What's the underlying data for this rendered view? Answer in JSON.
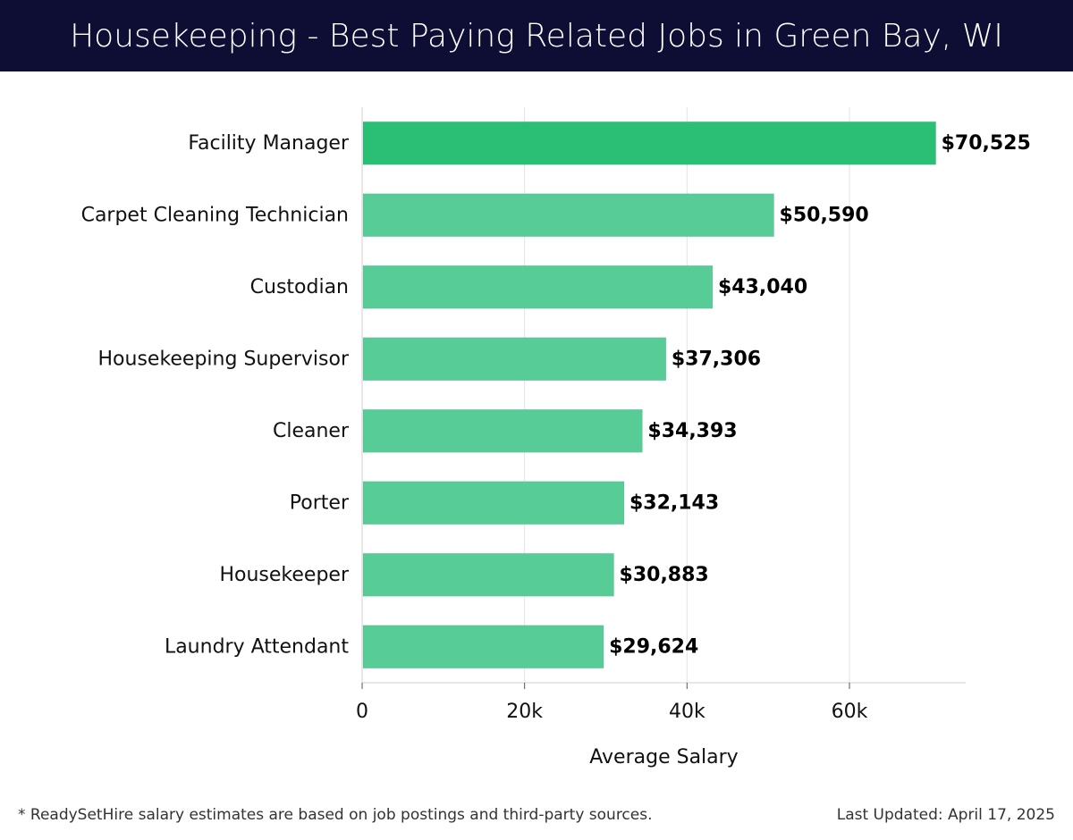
{
  "header": {
    "title": "Housekeeping - Best Paying Related Jobs in Green Bay, WI"
  },
  "footer": {
    "note": "* ReadySetHire salary estimates are based on job postings and third-party sources.",
    "updated": "Last Updated: April 17, 2025"
  },
  "colors": {
    "header_bg": "#0e0e35",
    "bar_top": "#2bbf76",
    "bar": "#58cc96"
  },
  "chart_data": {
    "type": "bar",
    "orientation": "horizontal",
    "categories": [
      "Facility Manager",
      "Carpet Cleaning Technician",
      "Custodian",
      "Housekeeping Supervisor",
      "Cleaner",
      "Porter",
      "Housekeeper",
      "Laundry Attendant"
    ],
    "values": [
      70525,
      50590,
      43040,
      37306,
      34393,
      32143,
      30883,
      29624
    ],
    "value_labels": [
      "$70,525",
      "$50,590",
      "$43,040",
      "$37,306",
      "$34,393",
      "$32,143",
      "$30,883",
      "$29,624"
    ],
    "xlabel": "Average Salary",
    "ylabel": "",
    "xlim": [
      0,
      74000
    ],
    "xticks": [
      0,
      20000,
      40000,
      60000
    ],
    "xtick_labels": [
      "0",
      "20k",
      "40k",
      "60k"
    ],
    "grid": "vertical"
  }
}
